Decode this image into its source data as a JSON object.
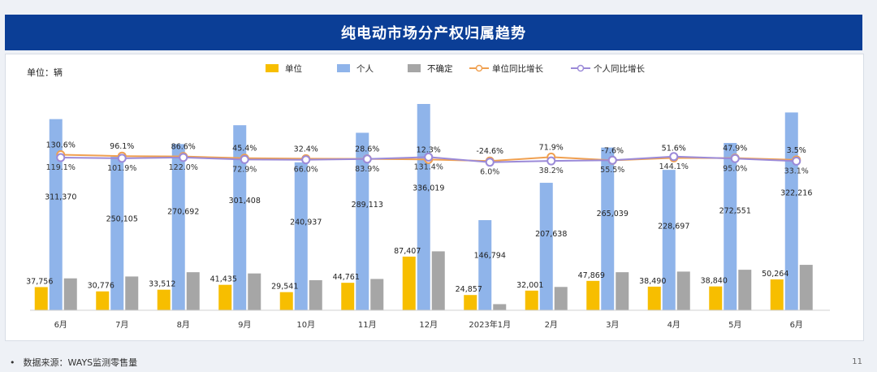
{
  "page": {
    "title": "纯电动市场分产权归属趋势",
    "source": "数据来源：WAYS监测零售量",
    "page_number": "11",
    "bullet": "•"
  },
  "colors": {
    "unit": "#f7be00",
    "personal": "#8fb4ea",
    "uncertain": "#a6a6a6",
    "unit_yoy": "#f0a050",
    "personal_yoy": "#9b8ad8",
    "title_bg": "#0b3e96"
  },
  "chart_data": {
    "type": "bar",
    "title": "纯电动市场分产权归属趋势",
    "unit_label": "单位：辆",
    "categories": [
      "6月",
      "7月",
      "8月",
      "9月",
      "10月",
      "11月",
      "12月",
      "2023年1月",
      "2月",
      "3月",
      "4月",
      "5月",
      "6月"
    ],
    "series": [
      {
        "name": "单位",
        "kind": "bar",
        "values": [
          37756,
          30776,
          33512,
          41435,
          29541,
          44761,
          87407,
          24857,
          32001,
          47869,
          38490,
          38840,
          50264
        ],
        "labels": [
          "37,756",
          "30,776",
          "33,512",
          "41,435",
          "29,541",
          "44,761",
          "87,407",
          "24,857",
          "32,001",
          "47,869",
          "38,490",
          "38,840",
          "50,264"
        ]
      },
      {
        "name": "个人",
        "kind": "bar",
        "values": [
          311370,
          250105,
          270692,
          301408,
          240937,
          289113,
          336019,
          146794,
          207638,
          265039,
          228697,
          272551,
          322216
        ],
        "labels": [
          "311,370",
          "250,105",
          "270,692",
          "301,408",
          "240,937",
          "289,113",
          "336,019",
          "146,794",
          "207,638",
          "265,039",
          "228,697",
          "272,551",
          "322,216"
        ]
      },
      {
        "name": "不确定",
        "kind": "bar",
        "values": [
          52000,
          55000,
          62000,
          60000,
          49000,
          51000,
          96000,
          10000,
          38000,
          62000,
          63000,
          66000,
          74000
        ]
      },
      {
        "name": "单位同比增长",
        "kind": "line",
        "values": [
          130.6,
          96.1,
          86.6,
          45.4,
          32.4,
          28.6,
          12.3,
          -24.6,
          71.9,
          -7.6,
          51.6,
          47.9,
          3.5
        ],
        "labels": [
          "130.6%",
          "96.1%",
          "86.6%",
          "45.4%",
          "32.4%",
          "28.6%",
          "12.3%",
          "-24.6%",
          "71.9%",
          "-7.6%",
          "51.6%",
          "47.9%",
          "3.5%"
        ]
      },
      {
        "name": "个人同比增长",
        "kind": "line",
        "values": [
          119.1,
          101.9,
          122.0,
          72.9,
          66.0,
          83.9,
          131.4,
          6.0,
          38.2,
          55.5,
          144.1,
          95.0,
          33.1
        ],
        "labels": [
          "119.1%",
          "101.9%",
          "122.0%",
          "72.9%",
          "66.0%",
          "83.9%",
          "131.4%",
          "6.0%",
          "38.2%",
          "55.5%",
          "144.1%",
          "95.0%",
          "33.1%"
        ]
      }
    ],
    "bar_axis_max": 340000,
    "legend_position": "top-center",
    "grid": false
  }
}
